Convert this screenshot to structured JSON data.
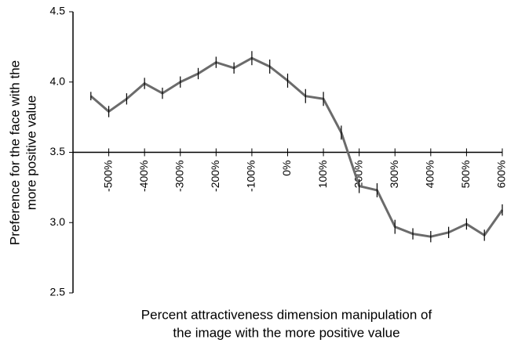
{
  "chart_data": {
    "type": "line",
    "x_label": [
      "Percent attractiveness dimension manipulation of",
      "the image with the more positive value"
    ],
    "y_label": [
      "Preference for the face with the",
      "more positive value"
    ],
    "x": [
      -550,
      -500,
      -450,
      -400,
      -350,
      -300,
      -250,
      -200,
      -150,
      -100,
      -50,
      0,
      50,
      100,
      150,
      200,
      250,
      300,
      350,
      400,
      450,
      500,
      550,
      600
    ],
    "series": [
      {
        "color": "#6b6b6b",
        "values": [
          3.9,
          3.79,
          3.88,
          3.99,
          3.92,
          4.0,
          4.06,
          4.14,
          4.1,
          4.17,
          4.11,
          4.01,
          3.9,
          3.88,
          3.64,
          3.26,
          3.23,
          2.97,
          2.92,
          2.9,
          2.93,
          2.99,
          2.91,
          3.09
        ],
        "errors": [
          0.03,
          0.04,
          0.04,
          0.04,
          0.04,
          0.04,
          0.04,
          0.04,
          0.04,
          0.05,
          0.05,
          0.05,
          0.05,
          0.05,
          0.05,
          0.05,
          0.05,
          0.05,
          0.04,
          0.04,
          0.04,
          0.04,
          0.04,
          0.04
        ]
      }
    ],
    "xlim": [
      -600,
      600
    ],
    "xticks": [
      {
        "value": -500,
        "label": "-500%"
      },
      {
        "value": -400,
        "label": "-400%"
      },
      {
        "value": -300,
        "label": "-300%"
      },
      {
        "value": -200,
        "label": "-200%"
      },
      {
        "value": -100,
        "label": "-100%"
      },
      {
        "value": 0,
        "label": "0%"
      },
      {
        "value": 100,
        "label": "100%"
      },
      {
        "value": 200,
        "label": "200%"
      },
      {
        "value": 300,
        "label": "300%"
      },
      {
        "value": 400,
        "label": "400%"
      },
      {
        "value": 500,
        "label": "500%"
      },
      {
        "value": 600,
        "label": "600%"
      }
    ],
    "ylim": [
      2.5,
      4.5
    ],
    "yticks": [
      2.5,
      {
        "value": 3,
        "label": "3.0"
      },
      3.5,
      {
        "value": 4,
        "label": "4.0"
      },
      4.5
    ],
    "x_axis_crosses": 3.5
  }
}
